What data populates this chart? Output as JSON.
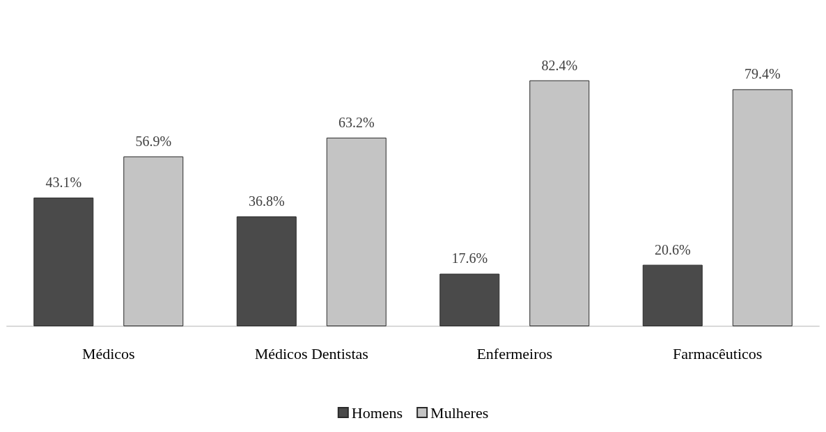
{
  "chart_data": {
    "type": "bar",
    "categories": [
      "Médicos",
      "Médicos Dentistas",
      "Enfermeiros",
      "Farmacêuticos"
    ],
    "series": [
      {
        "name": "Homens",
        "color": "#4a4a4a",
        "values": [
          43.1,
          36.8,
          17.6,
          20.6
        ],
        "value_labels": [
          "43.1%",
          "36.8%",
          "17.6%",
          "20.6%"
        ]
      },
      {
        "name": "Mulheres",
        "color": "#c4c4c4",
        "values": [
          56.9,
          63.2,
          82.4,
          79.4
        ],
        "value_labels": [
          "56.9%",
          "63.2%",
          "82.4%",
          "79.4%"
        ]
      }
    ],
    "legend": "bottom"
  }
}
